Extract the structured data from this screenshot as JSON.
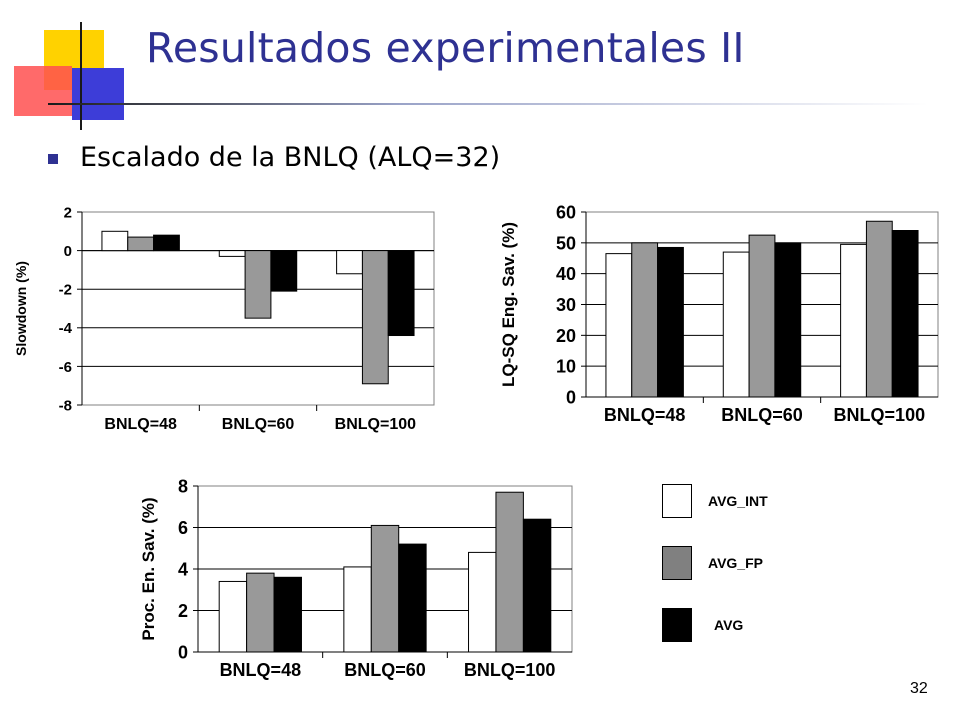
{
  "slide": {
    "title": "Resultados experimentales II",
    "bullet": "Escalado de la BNLQ (ALQ=32)",
    "page_number": "32",
    "title_color": "#2e3192",
    "bullet_color": "#2e3192"
  },
  "legend": {
    "items": [
      {
        "label": "AVG_INT",
        "color": "#ffffff"
      },
      {
        "label": "AVG_FP",
        "color": "#808080"
      },
      {
        "label": "AVG",
        "color": "#000000"
      }
    ]
  },
  "chart_data": [
    {
      "type": "bar",
      "title": "",
      "xlabel": "",
      "ylabel": "Slowdown (%)",
      "categories": [
        "BNLQ=48",
        "BNLQ=60",
        "BNLQ=100"
      ],
      "series": [
        {
          "name": "AVG_INT",
          "color": "#ffffff",
          "values": [
            1.0,
            -0.3,
            -1.2
          ]
        },
        {
          "name": "AVG_FP",
          "color": "#999999",
          "values": [
            0.7,
            -3.5,
            -6.9
          ]
        },
        {
          "name": "AVG",
          "color": "#000000",
          "values": [
            0.8,
            -2.1,
            -4.4
          ]
        }
      ],
      "ylim": [
        -8,
        2
      ],
      "yticks": [
        2,
        0,
        -2,
        -4,
        -6,
        -8
      ],
      "grid": true
    },
    {
      "type": "bar",
      "title": "",
      "xlabel": "",
      "ylabel": "LQ-SQ Eng. Sav. (%)",
      "categories": [
        "BNLQ=48",
        "BNLQ=60",
        "BNLQ=100"
      ],
      "series": [
        {
          "name": "AVG_INT",
          "color": "#ffffff",
          "values": [
            46.5,
            47.0,
            49.5
          ]
        },
        {
          "name": "AVG_FP",
          "color": "#999999",
          "values": [
            50.0,
            52.5,
            57.0
          ]
        },
        {
          "name": "AVG",
          "color": "#000000",
          "values": [
            48.5,
            50.0,
            54.0
          ]
        }
      ],
      "ylim": [
        0,
        60
      ],
      "yticks": [
        60,
        50,
        40,
        30,
        20,
        10,
        0
      ],
      "grid": true
    },
    {
      "type": "bar",
      "title": "",
      "xlabel": "",
      "ylabel": "Proc. En. Sav. (%)",
      "categories": [
        "BNLQ=48",
        "BNLQ=60",
        "BNLQ=100"
      ],
      "series": [
        {
          "name": "AVG_INT",
          "color": "#ffffff",
          "values": [
            3.4,
            4.1,
            4.8
          ]
        },
        {
          "name": "AVG_FP",
          "color": "#999999",
          "values": [
            3.8,
            6.1,
            7.7
          ]
        },
        {
          "name": "AVG",
          "color": "#000000",
          "values": [
            3.6,
            5.2,
            6.4
          ]
        }
      ],
      "ylim": [
        0,
        8
      ],
      "yticks": [
        8,
        6,
        4,
        2,
        0
      ],
      "grid": true
    }
  ]
}
